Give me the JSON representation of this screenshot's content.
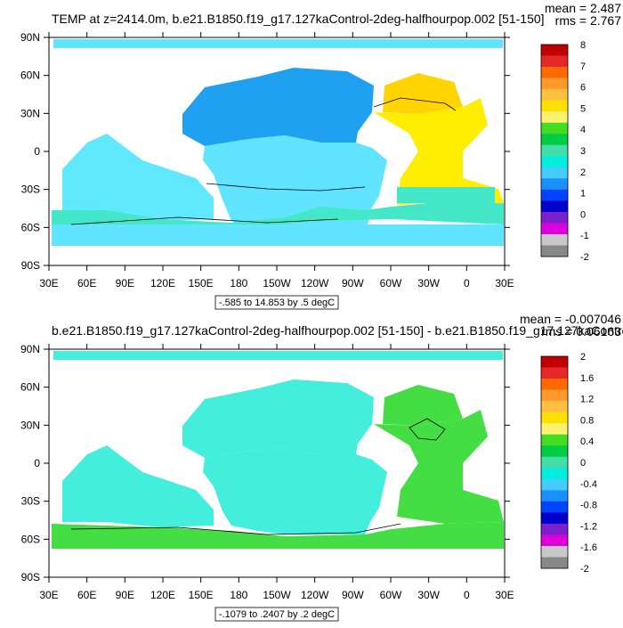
{
  "panels": [
    {
      "title": "TEMP at z=2414.0m, b.e21.B1850.f19_g17.127kaControl-2deg-halfhourpop.002 [51-150]",
      "mean_label": "mean = 2.487",
      "rms_label": "rms = 2.767",
      "range_label": "-.585 to 14.853 by .5 degC",
      "colorbar": {
        "labels": [
          "8",
          "7",
          "6",
          "5",
          "4",
          "3",
          "2",
          "1",
          "0",
          "-1",
          "-2"
        ],
        "colors": [
          "#c00000",
          "#e62828",
          "#ff6a00",
          "#ff9a2a",
          "#ffc040",
          "#ffe000",
          "#fff270",
          "#44dd22",
          "#00cc44",
          "#44ddaa",
          "#00eedd",
          "#44ccff",
          "#1a90ff",
          "#0044ff",
          "#0000cc",
          "#7a20cc",
          "#dd00dd",
          "#c8c8c8",
          "#888888"
        ]
      },
      "regions": {
        "pacific_north": "#1fa0f0",
        "pacific_south": "#60e4ff",
        "indian": "#60e8ff",
        "southern_band": "#44e8c8",
        "southern_deep": "#1f8be8",
        "atlantic": "#ffee00",
        "atlantic_north": "#ffd400",
        "arctic": "#60e4ff"
      }
    },
    {
      "title": "b.e21.B1850.f19_g17.127kaControl-2deg-halfhourpop.002 [51-150] - b.e21.B1850.f19_g17.127kaControl",
      "mean_label": "mean = -0.007046",
      "rms_label": "rms = 0.06163",
      "range_label": "-.1079 to .2407 by .2 degC",
      "colorbar": {
        "labels": [
          "2",
          "1.6",
          "1.2",
          "0.8",
          "0.4",
          "0",
          "-0.4",
          "-0.8",
          "-1.2",
          "-1.6",
          "-2"
        ],
        "colors": [
          "#c00000",
          "#e62828",
          "#ff6a00",
          "#ff9a2a",
          "#ffc040",
          "#ffe000",
          "#fff270",
          "#44dd22",
          "#00cc44",
          "#44ddaa",
          "#00eedd",
          "#44ccff",
          "#1a90ff",
          "#0044ff",
          "#0000cc",
          "#7a20cc",
          "#dd00dd",
          "#c8c8c8",
          "#888888"
        ]
      },
      "regions": {
        "pacific_north": "#44eedd",
        "pacific_south": "#44eedd",
        "indian": "#44eedd",
        "southern_band": "#44dd44",
        "southern_deep": "#44dd44",
        "atlantic": "#44dd44",
        "atlantic_north": "#44dd44",
        "arctic": "#44eedd"
      }
    }
  ],
  "axes": {
    "lat_ticks": [
      "90N",
      "60N",
      "30N",
      "0",
      "30S",
      "60S",
      "90S"
    ],
    "lon_ticks": [
      "30E",
      "60E",
      "90E",
      "120E",
      "150E",
      "180",
      "150W",
      "120W",
      "90W",
      "60W",
      "30W",
      "0",
      "30E"
    ]
  },
  "chart_data": [
    {
      "type": "heatmap",
      "title": "TEMP at z=2414.0m, b.e21.B1850.f19_g17.127kaControl-2deg-halfhourpop.002 [51-150]",
      "xlim": [
        "30E",
        "30E"
      ],
      "ylim": [
        "90S",
        "90N"
      ],
      "colorbar_levels": [
        -2,
        -1,
        0,
        1,
        2,
        3,
        4,
        5,
        6,
        7,
        8
      ],
      "stats": {
        "mean": 2.487,
        "rms": 2.767
      },
      "contour_range": {
        "min": -0.585,
        "max": 14.853,
        "step": 0.5,
        "units": "degC"
      }
    },
    {
      "type": "heatmap",
      "title": "b.e21.B1850.f19_g17.127kaControl-2deg-halfhourpop.002 [51-150] - b.e21.B1850.f19_g17.127kaControl",
      "xlim": [
        "30E",
        "30E"
      ],
      "ylim": [
        "90S",
        "90N"
      ],
      "colorbar_levels": [
        -2,
        -1.6,
        -1.2,
        -0.8,
        -0.4,
        0,
        0.4,
        0.8,
        1.2,
        1.6,
        2
      ],
      "stats": {
        "mean": -0.007046,
        "rms": 0.06163
      },
      "contour_range": {
        "min": -0.1079,
        "max": 0.2407,
        "step": 0.2,
        "units": "degC"
      }
    }
  ]
}
